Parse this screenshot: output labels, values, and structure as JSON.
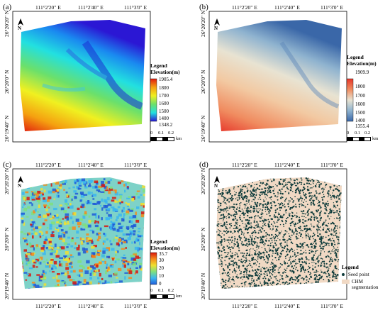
{
  "panels": {
    "a": {
      "label": "(a)",
      "coords": {
        "top": [
          "111°2'20\" E",
          "111°2'40\" E",
          "111°3'0\" E"
        ],
        "left": [
          "26°20'20\" N",
          "26°20'0\" N",
          "26°19'40\" N"
        ]
      },
      "legend": {
        "title": "Legend",
        "subtitle": "Elevation(m)",
        "max": "1905.4",
        "ticks": [
          "1800",
          "1700",
          "1600",
          "1500",
          "1400"
        ],
        "min": "1348.2"
      },
      "colormap": [
        "#2b17d4",
        "#1a8af0",
        "#22e0e0",
        "#6be06b",
        "#f0f020",
        "#f5a010",
        "#e01a0e"
      ],
      "scale": {
        "labels": [
          "0",
          "0.1",
          "0.2"
        ],
        "unit": "km"
      }
    },
    "b": {
      "label": "(b)",
      "coords": {
        "top": [
          "111°2'20\" E",
          "111°2'40\" E",
          "111°3'0\" E"
        ],
        "left": [
          "26°20'20\" N",
          "26°20'0\" N",
          "26°19'40\" N"
        ]
      },
      "legend": {
        "title": "Legend",
        "subtitle": "Elevation(m)",
        "max": "1909.9",
        "ticks": [
          "1800",
          "1700",
          "1600",
          "1500",
          "1400"
        ],
        "min": "1355.4"
      },
      "colormap": [
        "#3a67a8",
        "#8fb3cf",
        "#e8e3d2",
        "#f2c9a2",
        "#f08c60",
        "#e6362a"
      ],
      "scale": {
        "labels": [
          "0",
          "0.1",
          "0.2"
        ],
        "unit": "km"
      }
    },
    "c": {
      "label": "(c)",
      "coords": {
        "top": [
          "111°2'20\" E",
          "111°2'40\" E",
          "111°3'0\" E"
        ],
        "left": [
          "26°20'20\" N",
          "26°20'0\" N",
          "26°19'40\" N"
        ]
      },
      "legend": {
        "title": "Legend",
        "subtitle": "Elevation(m)",
        "max": "35.7",
        "ticks": [
          "30",
          "20",
          "10",
          "0"
        ]
      },
      "colormap": [
        "#1f5bd8",
        "#3ab6f0",
        "#7ee07e",
        "#f0e030",
        "#f58a1a",
        "#d8160e"
      ],
      "scale": {
        "labels": [
          "0",
          "0.1",
          "0.2"
        ],
        "unit": "km"
      }
    },
    "d": {
      "label": "(d)",
      "coords": {
        "top": [
          "111°2'20\" E",
          "111°2'40\" E",
          "111°3'0\" E"
        ],
        "left": [
          "26°20'20\" N",
          "26°20'0\" N",
          "26°19'40\" N"
        ]
      },
      "legend": {
        "title": "Legend",
        "items": [
          "Seed point",
          "CHM segmentation"
        ]
      },
      "colors": {
        "seed": "#0e3b3b",
        "segmentation": "#f1d9c4"
      },
      "bottom_coords": [
        "111°2'20\" E",
        "111°2'40\" E",
        "111°3'0\" E"
      ]
    }
  },
  "north_arrow": {
    "letter": "N"
  }
}
